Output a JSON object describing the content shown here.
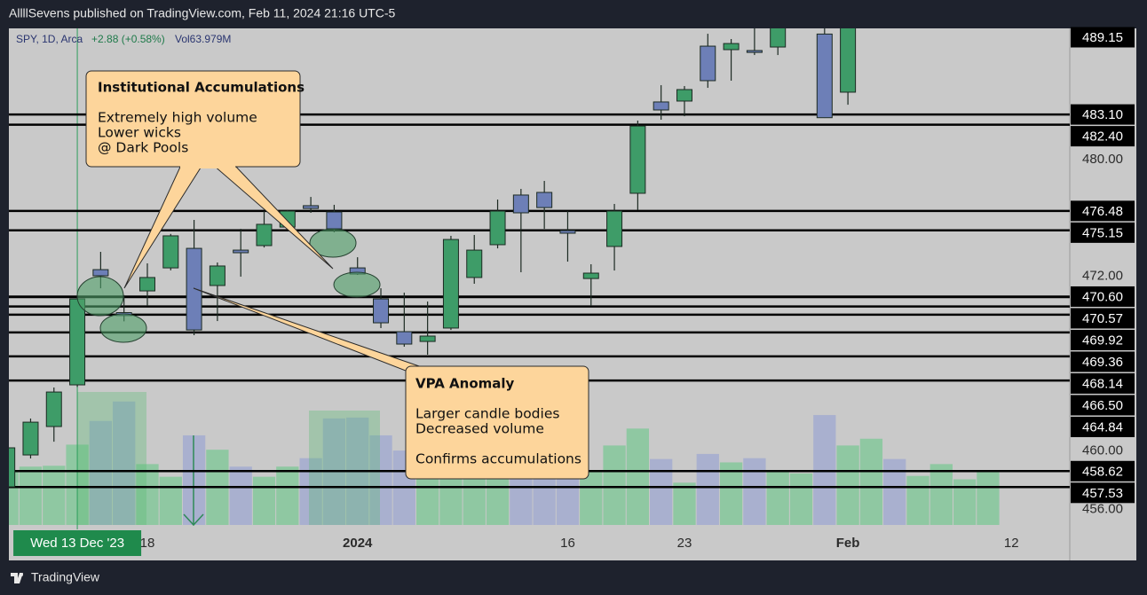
{
  "header": "AllllSevens published on TradingView.com, Feb 11, 2024 21:16 UTC-5",
  "footer": "TradingView",
  "chart_data": {
    "type": "candlestick",
    "symbol": "SPY, 1D, Arca",
    "change": "+2.88 (+0.58%)",
    "volume_text": "Vol63.979M",
    "xlim": [
      0.07,
      45.5
    ],
    "ylim": [
      452.49,
      489.01
    ],
    "volume_lim": [
      0,
      300
    ],
    "yticks": [
      {
        "value": 480,
        "label": "480.00"
      },
      {
        "value": 472,
        "label": "472.00"
      },
      {
        "value": 460,
        "label": "460.00"
      },
      {
        "value": 456,
        "label": "456.00"
      }
    ],
    "xticks": [
      {
        "value": 6,
        "label": "18"
      },
      {
        "value": 15,
        "label": "2024"
      },
      {
        "value": 24,
        "label": "16"
      },
      {
        "value": 29,
        "label": "23"
      },
      {
        "value": 36,
        "label": "Feb"
      },
      {
        "value": 43,
        "label": "12"
      }
    ],
    "crosshair": {
      "value": 3,
      "label": "Wed 13 Dec '23"
    },
    "up_color": "#3e9c68",
    "down_color": "#6d7fb7",
    "candles": {
      "open": [
        457.54,
        459.73,
        461.68,
        464.54,
        472.45,
        469.5,
        470.99,
        472.57,
        473.91,
        471.36,
        473.79,
        474.1,
        475.37,
        476.84,
        476.41,
        472.57,
        470.44,
        468.19,
        467.52,
        468.44,
        471.91,
        474.16,
        477.57,
        477.75,
        475.13,
        471.84,
        474.04,
        477.69,
        483.96,
        484.02,
        487.79,
        487.55,
        487.49,
        487.73,
        null,
        488.62,
        484.63,
        null,
        null,
        null,
        null,
        null,
        null
      ],
      "high": [
        460.34,
        462.23,
        464.36,
        470.5,
        473.67,
        470.7,
        472.88,
        474.9,
        475.86,
        472.94,
        475.25,
        476.47,
        476.53,
        477.44,
        476.9,
        473.3,
        471.17,
        470.87,
        470.26,
        474.77,
        474.83,
        477.26,
        477.99,
        478.54,
        476.47,
        472.82,
        476.96,
        482.68,
        485.11,
        485.05,
        488.64,
        488.28,
        489.12,
        491.62,
        null,
        489.08,
        489.23,
        null,
        null,
        null,
        null,
        null,
        null
      ],
      "low": [
        457.42,
        459.49,
        460.64,
        464.4,
        471.17,
        468.9,
        469.96,
        472.4,
        467.95,
        468.92,
        471.97,
        473.97,
        475.25,
        476.35,
        475.01,
        472.09,
        468.44,
        467.16,
        466.61,
        468.31,
        471.48,
        473.91,
        472.27,
        475.25,
        473.0,
        469.96,
        472.39,
        476.53,
        482.74,
        482.98,
        484.93,
        485.42,
        487.18,
        487.18,
        null,
        482.86,
        483.77,
        null,
        null,
        null,
        null,
        null,
        null
      ],
      "close": [
        460.22,
        461.98,
        464.05,
        470.44,
        472.03,
        469.3,
        471.91,
        474.77,
        468.31,
        472.7,
        473.61,
        475.56,
        476.47,
        476.65,
        475.25,
        472.15,
        468.8,
        467.34,
        467.89,
        474.52,
        473.79,
        476.47,
        476.35,
        476.71,
        474.95,
        472.21,
        476.47,
        482.31,
        483.41,
        484.81,
        485.42,
        487.97,
        487.36,
        491.27,
        null,
        482.88,
        489.2,
        null,
        null,
        null,
        null,
        null,
        null
      ]
    },
    "volume": {
      "values": [
        65,
        69,
        70,
        95,
        123,
        146,
        72,
        57,
        106,
        89,
        69,
        57,
        69,
        79,
        126,
        127,
        106,
        88,
        68,
        65,
        62,
        64,
        70,
        68,
        64,
        65,
        94,
        114,
        78,
        50,
        84,
        74,
        79,
        63,
        61,
        130,
        94,
        102,
        78,
        58,
        72,
        54,
        64
      ],
      "colors": [
        "#8fc8a2",
        "#8fc8a2",
        "#8fc8a2",
        "#8fc8a2",
        "#a9b0cf",
        "#a9b0cf",
        "#8fc8a2",
        "#8fc8a2",
        "#a9b0cf",
        "#8fc8a2",
        "#a9b0cf",
        "#8fc8a2",
        "#8fc8a2",
        "#a9b0cf",
        "#a9b0cf",
        "#a9b0cf",
        "#a9b0cf",
        "#a9b0cf",
        "#8fc8a2",
        "#8fc8a2",
        "#8fc8a2",
        "#8fc8a2",
        "#a9b0cf",
        "#a9b0cf",
        "#a9b0cf",
        "#8fc8a2",
        "#8fc8a2",
        "#8fc8a2",
        "#a9b0cf",
        "#8fc8a2",
        "#a9b0cf",
        "#8fc8a2",
        "#a9b0cf",
        "#8fc8a2",
        "#8fc8a2",
        "#a9b0cf",
        "#8fc8a2",
        "#8fc8a2",
        "#a9b0cf",
        "#8fc8a2",
        "#8fc8a2",
        "#8fc8a2",
        "#8fc8a2"
      ]
    },
    "last_price": {
      "value": 489.15,
      "label": "489.15"
    },
    "levels": [
      {
        "value": 483.1,
        "label": "483.10"
      },
      {
        "value": 482.4,
        "label": "482.40"
      },
      {
        "value": 476.48,
        "label": "476.48"
      },
      {
        "value": 475.15,
        "label": "475.15"
      },
      {
        "value": 470.6,
        "label": "470.60"
      },
      {
        "value": 470.57,
        "label": "470.57"
      },
      {
        "value": 469.92,
        "label": "469.92"
      },
      {
        "value": 469.36,
        "label": "469.36"
      },
      {
        "value": 468.14,
        "label": "468.14"
      },
      {
        "value": 466.5,
        "label": "466.50"
      },
      {
        "value": 464.84,
        "label": "464.84"
      },
      {
        "value": 458.62,
        "label": "458.62"
      },
      {
        "value": 457.53,
        "label": "457.53"
      }
    ],
    "annotations": [
      {
        "title": "Institutional Accumulations",
        "lines": [
          "Extremely high volume",
          "Lower wicks",
          "@ Dark Pools"
        ]
      },
      {
        "title": "VPA Anomaly",
        "lines": [
          "Larger candle bodies",
          "Decreased volume",
          "Confirms accumulations"
        ]
      }
    ]
  }
}
